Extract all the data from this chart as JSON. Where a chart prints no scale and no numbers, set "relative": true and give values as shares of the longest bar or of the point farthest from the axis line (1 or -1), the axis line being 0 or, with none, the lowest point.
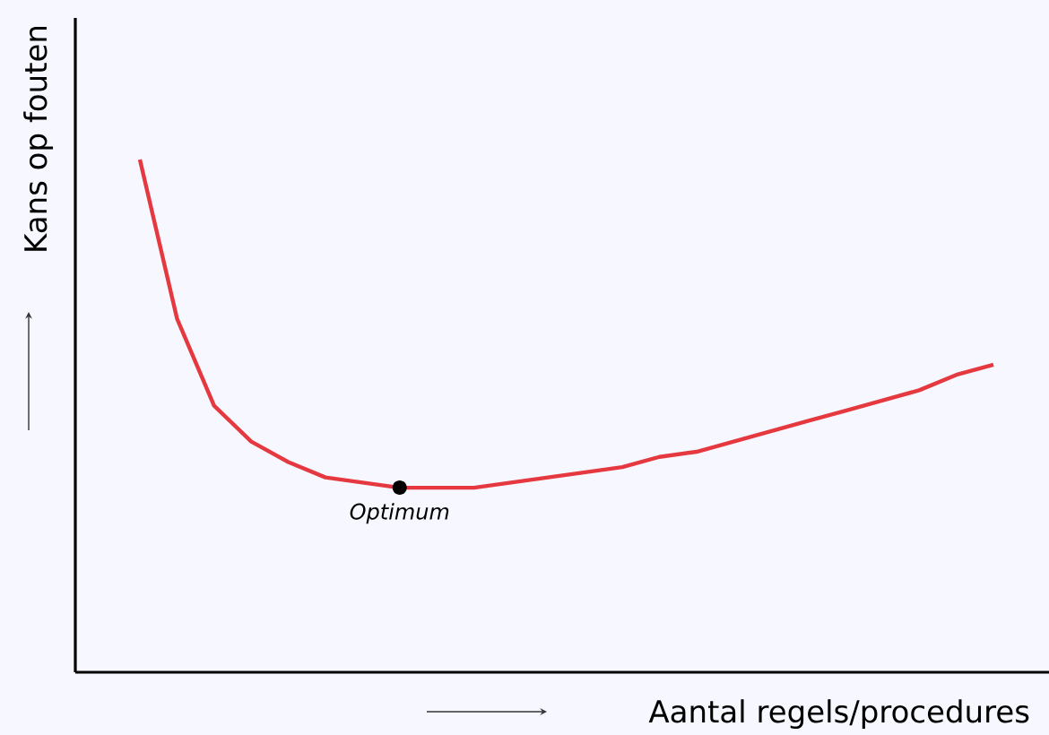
{
  "chart_data": {
    "type": "line",
    "relative": true,
    "xlabel": "Aantal regels/procedures",
    "ylabel": "Kans op fouten",
    "categories": [
      null,
      null,
      null,
      null,
      null,
      null,
      null,
      null,
      null,
      null,
      null,
      null,
      null,
      null,
      null,
      null,
      null,
      null,
      null,
      null,
      null,
      null,
      null,
      null
    ],
    "series": [
      {
        "color": "#e5383f",
        "values": [
          1.0,
          0.69,
          0.52,
          0.45,
          0.41,
          0.38,
          0.37,
          0.36,
          0.36,
          0.36,
          0.37,
          0.38,
          0.39,
          0.4,
          0.42,
          0.43,
          0.45,
          0.47,
          0.49,
          0.51,
          0.53,
          0.55,
          0.58,
          0.6
        ]
      }
    ],
    "annotations": [
      "Optimum"
    ]
  }
}
